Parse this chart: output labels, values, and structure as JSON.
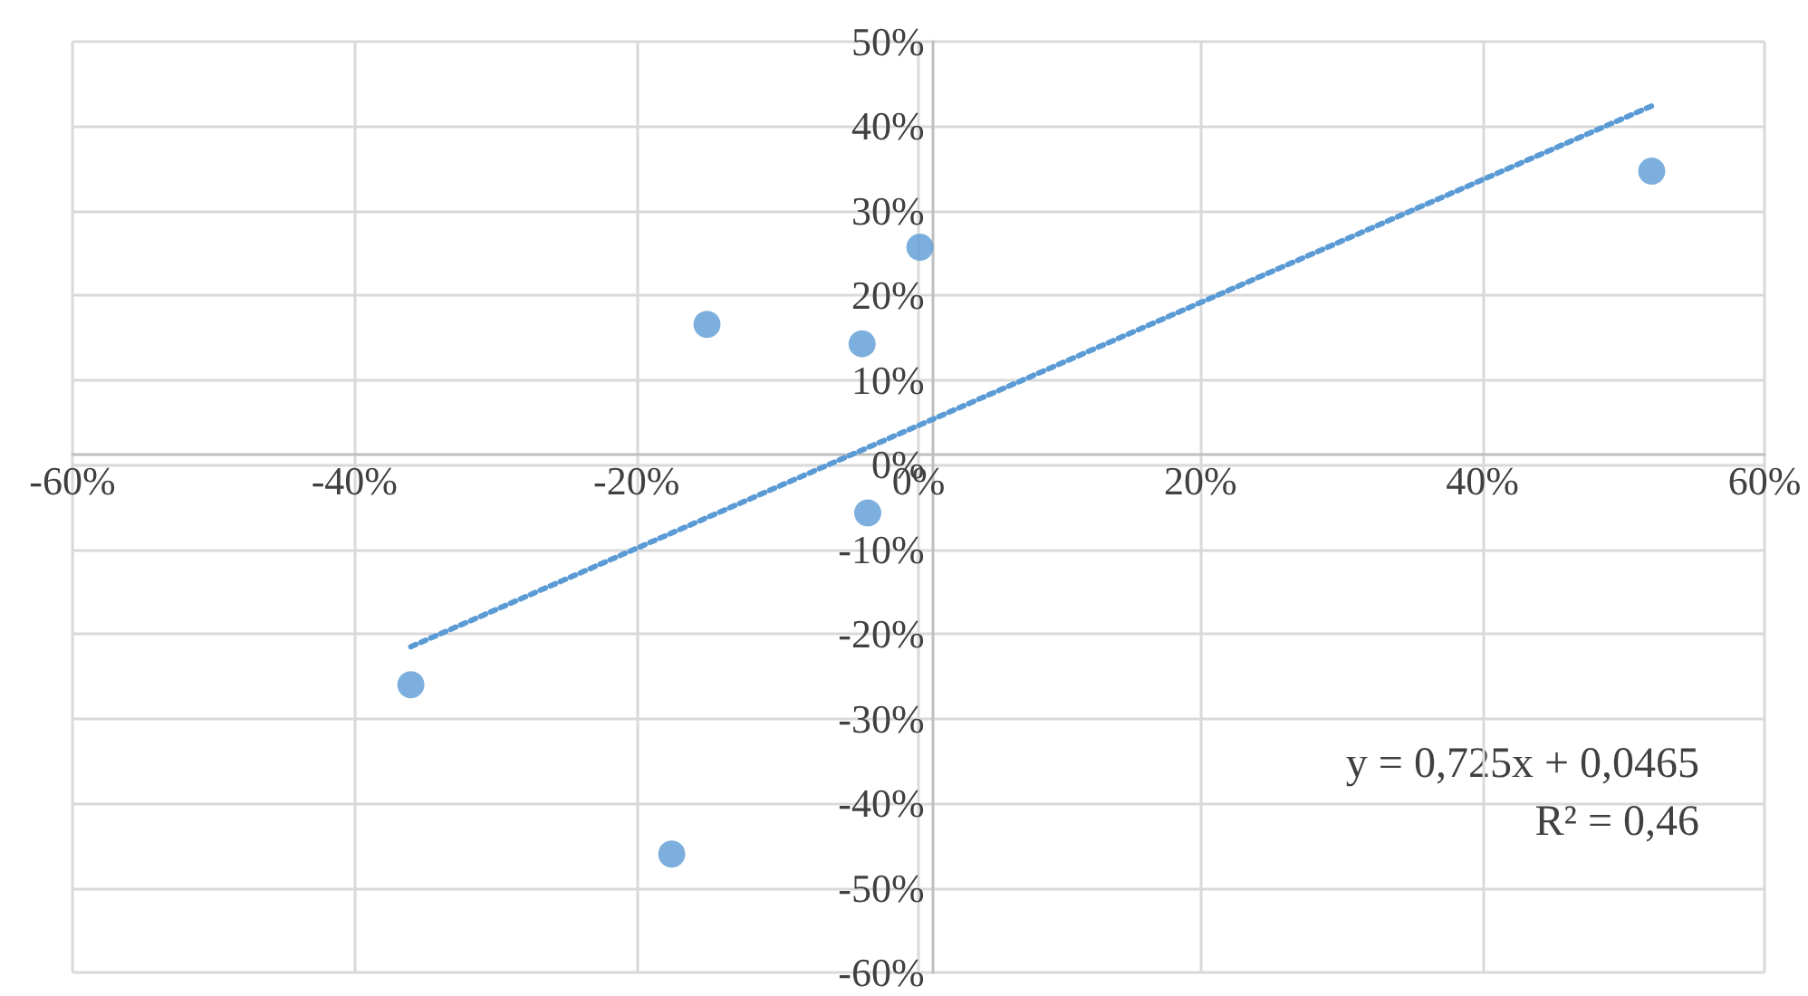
{
  "chart_data": {
    "type": "scatter",
    "marker": "circle",
    "grid": true,
    "x": [
      -36,
      -17.5,
      -15,
      -4,
      -3.6,
      0.1,
      52
    ],
    "series": [
      {
        "color": "#5b9bd5",
        "values": [
          -26,
          -46,
          16.6,
          14.3,
          -5.7,
          25.7,
          34.7
        ]
      },
      {
        "type": "line",
        "color": "#5b9bd5",
        "line_style": "dotted",
        "marker": "none",
        "x": [
          -36,
          52
        ],
        "values": [
          -21.5,
          42.4
        ]
      }
    ],
    "xlim": [
      -60,
      60
    ],
    "xticks": [
      {
        "value": -60,
        "label": "-60%"
      },
      {
        "value": -40,
        "label": "-40%"
      },
      {
        "value": -20,
        "label": "-20%"
      },
      {
        "value": 0,
        "label": "0%"
      },
      {
        "value": 20,
        "label": "20%"
      },
      {
        "value": 40,
        "label": "40%"
      },
      {
        "value": 60,
        "label": "60%"
      }
    ],
    "ylim": [
      -60,
      50
    ],
    "yticks": [
      {
        "value": -60,
        "label": "-60%"
      },
      {
        "value": -50,
        "label": "-50%"
      },
      {
        "value": -40,
        "label": "-40%"
      },
      {
        "value": -30,
        "label": "-30%"
      },
      {
        "value": -20,
        "label": "-20%"
      },
      {
        "value": -10,
        "label": "-10%"
      },
      {
        "value": 0,
        "label": "0%"
      },
      {
        "value": 10,
        "label": "10%"
      },
      {
        "value": 20,
        "label": "20%"
      },
      {
        "value": 30,
        "label": "30%"
      },
      {
        "value": 40,
        "label": "40%"
      },
      {
        "value": 50,
        "label": "50%"
      }
    ],
    "annotations": [
      "y = 0,725x + 0,0465",
      "R² = 0,46"
    ]
  }
}
